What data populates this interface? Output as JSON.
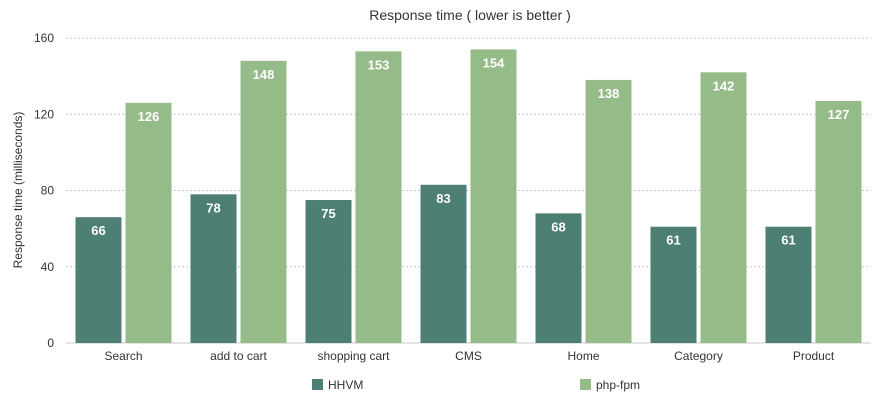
{
  "chart_data": {
    "type": "bar",
    "title": "Response time ( lower is better )",
    "xlabel": "",
    "ylabel": "Response time (milliseconds)",
    "ylim": [
      0,
      160
    ],
    "yticks": [
      0,
      40,
      80,
      120,
      160
    ],
    "grid": true,
    "legend_position": "bottom",
    "categories": [
      "Search",
      "add to cart",
      "shopping cart",
      "CMS",
      "Home",
      "Category",
      "Product"
    ],
    "series": [
      {
        "name": "HHVM",
        "color": "#4e7f74",
        "values": [
          66,
          78,
          75,
          83,
          68,
          61,
          61
        ]
      },
      {
        "name": "php-fpm",
        "color": "#95bb88",
        "values": [
          126,
          148,
          153,
          154,
          138,
          142,
          127
        ]
      }
    ]
  }
}
